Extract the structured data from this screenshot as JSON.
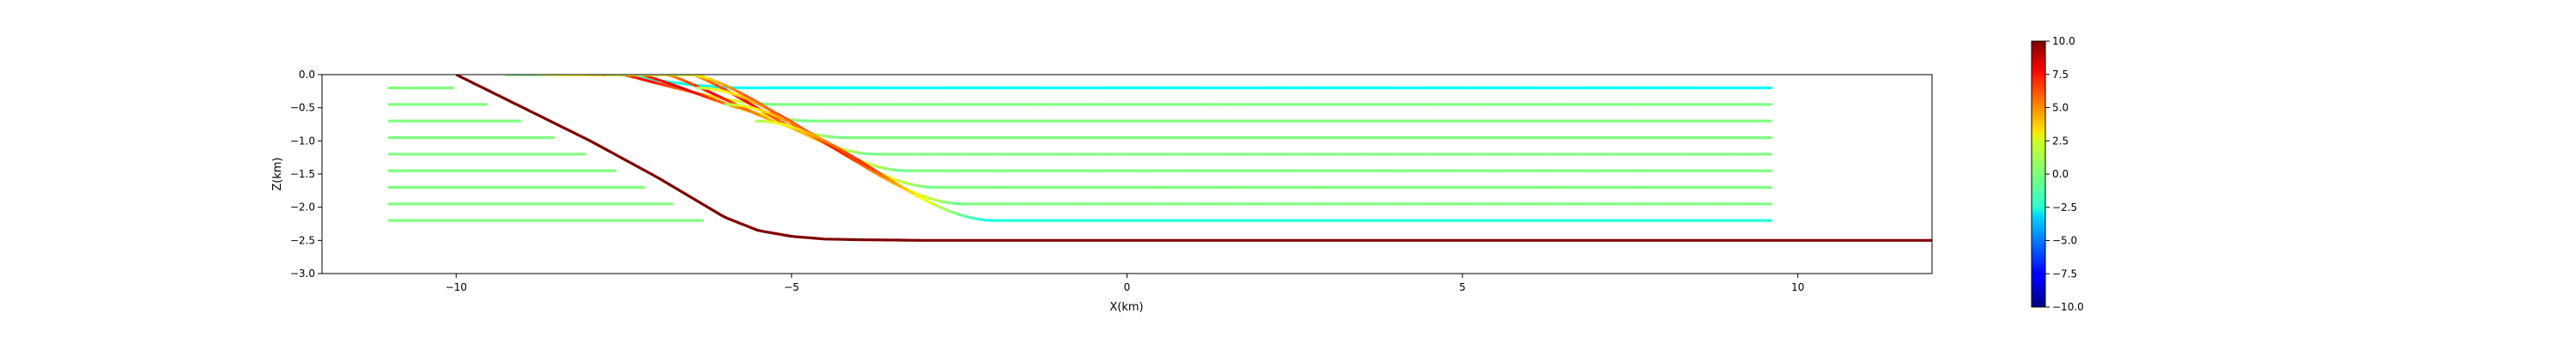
{
  "chart_data": {
    "type": "line",
    "title": "",
    "xlabel": "X(km)",
    "ylabel": "Z(km)",
    "xlim": [
      -12,
      12
    ],
    "ylim": [
      -3.0,
      0.0
    ],
    "grid": false,
    "x_ticks": [
      -10,
      -5,
      0,
      5,
      10
    ],
    "x_tick_labels": [
      "−10",
      "−5",
      "0",
      "5",
      "10"
    ],
    "y_ticks": [
      0.0,
      -0.5,
      -1.0,
      -1.5,
      -2.0,
      -2.5,
      -3.0
    ],
    "y_tick_labels": [
      "0.0",
      "−0.5",
      "−1.0",
      "−1.5",
      "−2.0",
      "−2.5",
      "−3.0"
    ],
    "colormap": "jet",
    "colorbar": {
      "range": [
        -10,
        10
      ],
      "ticks": [
        10.0,
        7.5,
        5.0,
        2.5,
        0.0,
        -2.5,
        -5.0,
        -7.5,
        -10.0
      ],
      "tick_labels": [
        "10.0",
        "7.5",
        "5.0",
        "2.5",
        "0.0",
        "−2.5",
        "−5.0",
        "−7.5",
        "−10.0"
      ],
      "placement": "right"
    },
    "fault": {
      "color": "#800000",
      "x": [
        -10.0,
        -9.0,
        -8.0,
        -7.0,
        -6.5,
        -6.0,
        -5.5,
        -5.0,
        -4.5,
        -4.0,
        -3.0,
        0.0,
        5.0,
        12.0
      ],
      "y": [
        0.0,
        -0.5,
        -1.0,
        -1.55,
        -1.85,
        -2.15,
        -2.35,
        -2.44,
        -2.48,
        -2.49,
        -2.5,
        -2.5,
        -2.5,
        -2.5
      ]
    },
    "horizon_depths": [
      -0.2,
      -0.45,
      -0.7,
      -0.95,
      -1.2,
      -1.45,
      -1.7,
      -1.95,
      -2.2
    ],
    "horizon_x_start": -11.0,
    "horizon_x_end": 9.6,
    "footwall_flat_value": 0.0,
    "hanging_wall_far_values": [
      -2.5,
      0.0,
      0.0,
      0.0,
      0.0,
      0.0,
      0.0,
      0.0,
      -1.8
    ],
    "series": [
      {
        "depth": -0.2,
        "x": [
          -11.0,
          -10.0,
          -8.0,
          -7.0,
          -6.0,
          -5.0,
          -4.5,
          -4.0,
          -3.0,
          0.0,
          5.0,
          9.6
        ],
        "y": [
          -0.2,
          -0.2,
          -0.2,
          -0.2,
          -0.2,
          -0.2,
          -0.2,
          -0.2,
          -0.2,
          -0.2,
          -0.2,
          -0.2
        ]
      }
    ]
  }
}
